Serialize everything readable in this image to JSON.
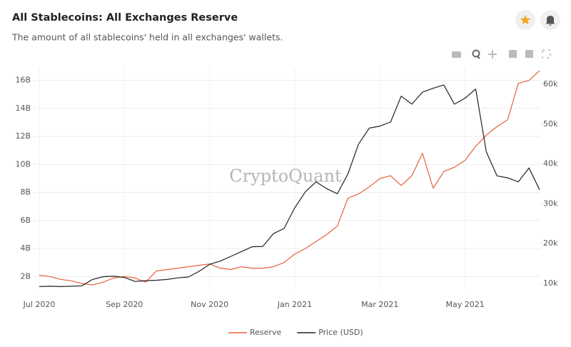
{
  "chart_data": {
    "type": "line",
    "title": "All Stablecoins: All Exchanges Reserve",
    "subtitle": "The amount of all stablecoins' held in all exchanges' wallets.",
    "watermark": "CryptoQuant",
    "categories": [
      "Jul 2020",
      null,
      null,
      null,
      null,
      null,
      null,
      null,
      "Sep 2020",
      null,
      null,
      null,
      null,
      null,
      null,
      null,
      "Nov 2020",
      null,
      null,
      null,
      null,
      null,
      null,
      null,
      "Jan 2021",
      null,
      null,
      null,
      null,
      null,
      null,
      null,
      "Mar 2021",
      null,
      null,
      null,
      null,
      null,
      null,
      null,
      "May 2021",
      null,
      null,
      null,
      null,
      null,
      null,
      null
    ],
    "series": [
      {
        "name": "Reserve",
        "color": "#e8603c",
        "axis": "y",
        "values": [
          2.1,
          2.0,
          1.8,
          1.7,
          1.5,
          1.4,
          1.6,
          1.9,
          2.0,
          1.9,
          1.6,
          2.4,
          2.5,
          2.6,
          2.7,
          2.8,
          2.9,
          2.6,
          2.5,
          2.7,
          2.6,
          2.6,
          2.7,
          3.0,
          3.6,
          4.0,
          4.5,
          5.0,
          5.6,
          7.6,
          7.9,
          8.4,
          9.0,
          9.2,
          8.5,
          9.2,
          10.8,
          8.3,
          9.5,
          9.8,
          10.3,
          11.3,
          12.1,
          12.7,
          13.2,
          15.8,
          16.0,
          16.7
        ]
      },
      {
        "name": "Price (USD)",
        "color": "#222222",
        "axis": "y2",
        "values": [
          9200,
          9300,
          9200,
          9300,
          9400,
          11000,
          11700,
          11800,
          11500,
          10500,
          10700,
          10800,
          11000,
          11400,
          11600,
          13000,
          14800,
          15600,
          16800,
          18000,
          19200,
          19300,
          22500,
          23800,
          29000,
          33000,
          35500,
          33800,
          32500,
          37500,
          45000,
          49000,
          49500,
          50500,
          57000,
          55000,
          58000,
          59000,
          59800,
          55000,
          56500,
          58800,
          43000,
          37000,
          36500,
          35500,
          39000,
          33500
        ]
      }
    ],
    "ylim": [
      1.1,
      16.9
    ],
    "yticks": [
      {
        "value": 2,
        "label": "2B"
      },
      {
        "value": 4,
        "label": "4B"
      },
      {
        "value": 6,
        "label": "6B"
      },
      {
        "value": 8,
        "label": "8B"
      },
      {
        "value": 10,
        "label": "10B"
      },
      {
        "value": 12,
        "label": "12B"
      },
      {
        "value": 14,
        "label": "14B"
      },
      {
        "value": 16,
        "label": "16B"
      }
    ],
    "y2lim": [
      8560,
      64120
    ],
    "y2ticks": [
      {
        "value": 10000,
        "label": "10k"
      },
      {
        "value": 20000,
        "label": "20k"
      },
      {
        "value": 30000,
        "label": "30k"
      },
      {
        "value": 40000,
        "label": "40k"
      },
      {
        "value": 50000,
        "label": "50k"
      },
      {
        "value": 60000,
        "label": "60k"
      }
    ],
    "grid": true,
    "legend": "bottom"
  }
}
